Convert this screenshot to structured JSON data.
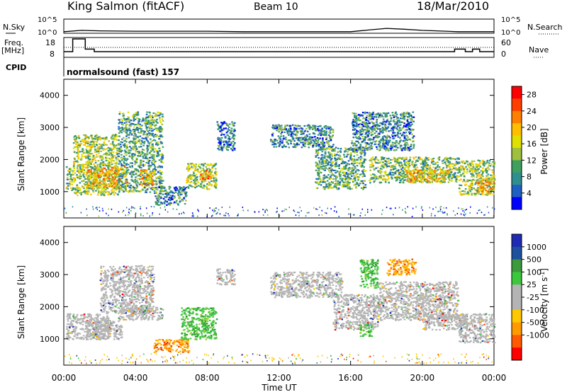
{
  "header": {
    "station": "King Salmon (fitACF)",
    "beam": "Beam 10",
    "date": "18/Mar/2010"
  },
  "left_labels": {
    "nsky": "N.Sky",
    "freq": "Freq.",
    "freq_unit": "[MHz]",
    "cpid": "CPID"
  },
  "right_labels": {
    "nsearch": "N.Search",
    "nave": "Nave"
  },
  "cpid_text": "normalsound (fast) 157",
  "x_axis": {
    "label": "Time UT",
    "ticks": [
      "00:00",
      "04:00",
      "08:00",
      "12:00",
      "16:00",
      "20:00",
      "00:00"
    ]
  },
  "colors": {
    "power_scale": [
      "#0000ff",
      "#1f5fbf",
      "#2f8f8f",
      "#3f9f5f",
      "#9fbf3f",
      "#dfdf00",
      "#ffbf00",
      "#ff7f00",
      "#ff3f00",
      "#ff0000"
    ],
    "velocity_scale": [
      "#ff0000",
      "#ff5a00",
      "#ff9a00",
      "#ffc800",
      "#b4b4b4",
      "#b4b4b4",
      "#3cc83c",
      "#3c9a3c",
      "#1e50a0",
      "#1e2ab4"
    ],
    "ground_scatter": "#b4b4b4"
  },
  "chart_data": [
    {
      "type": "line",
      "panel": "noise",
      "ylabel": "N.Sky",
      "right_label": "N.Search",
      "y_ticks": [
        "10^5",
        "10^0"
      ],
      "y_log": true,
      "xlim": [
        "00:00",
        "24:00"
      ],
      "series": [
        {
          "name": "N.Sky",
          "x": [
            0,
            1,
            2,
            4,
            6,
            8,
            10,
            12,
            14,
            16,
            17,
            18,
            19,
            20,
            22,
            24
          ],
          "values": [
            2,
            6,
            4,
            3,
            3,
            3,
            2,
            2,
            2,
            2,
            8,
            30,
            15,
            6,
            2,
            2
          ]
        }
      ]
    },
    {
      "type": "line",
      "panel": "frequency",
      "ylabel": "Freq. [MHz]",
      "y_ticks": [
        "18",
        "8"
      ],
      "ylim": [
        8,
        18
      ],
      "right_ticks": [
        "60",
        "0"
      ],
      "right_label": "Nave",
      "right_ylim": [
        0,
        60
      ],
      "xlim": [
        "00:00",
        "24:00"
      ],
      "series": [
        {
          "name": "Freq.",
          "x": [
            0,
            0.5,
            0.5,
            1.2,
            1.2,
            1.7,
            1.7,
            21.8,
            21.8,
            22.4,
            22.4,
            22.8,
            22.8,
            23.2,
            23.2,
            24
          ],
          "values": [
            10.5,
            10.5,
            18,
            18,
            12,
            12,
            10.5,
            10.5,
            12,
            12,
            10.5,
            10.5,
            12,
            12,
            10.5,
            10.5
          ]
        },
        {
          "name": "Nave",
          "x": [
            0,
            24
          ],
          "values": [
            30,
            30
          ]
        }
      ]
    },
    {
      "type": "heatmap",
      "panel": "power",
      "ylabel": "Slant Range [km]",
      "y_ticks": [
        1000,
        2000,
        3000,
        4000
      ],
      "ylim": [
        180,
        4500
      ],
      "xlim": [
        "00:00",
        "24:00"
      ],
      "colorbar": {
        "label": "Power [dB]",
        "ticks": [
          4,
          8,
          12,
          16,
          20,
          24,
          28
        ],
        "range": [
          0,
          30
        ]
      },
      "regions": [
        {
          "t0": 0.1,
          "t1": 0.5,
          "r0": 1050,
          "r1": 1800,
          "value": 12
        },
        {
          "t0": 0.5,
          "t1": 3.0,
          "r0": 900,
          "r1": 2800,
          "value": 14
        },
        {
          "t0": 1.2,
          "t1": 3.5,
          "r0": 1100,
          "r1": 1800,
          "value": 18
        },
        {
          "t0": 3.0,
          "t1": 5.5,
          "r0": 1000,
          "r1": 3500,
          "value": 10
        },
        {
          "t0": 4.2,
          "t1": 5.0,
          "r0": 1200,
          "r1": 1700,
          "value": 20
        },
        {
          "t0": 5.0,
          "t1": 6.8,
          "r0": 600,
          "r1": 1200,
          "value": 8
        },
        {
          "t0": 6.8,
          "t1": 8.5,
          "r0": 1100,
          "r1": 1900,
          "value": 14
        },
        {
          "t0": 7.5,
          "t1": 8.2,
          "r0": 1400,
          "r1": 1700,
          "value": 22
        },
        {
          "t0": 8.5,
          "t1": 9.5,
          "r0": 2300,
          "r1": 3200,
          "value": 6
        },
        {
          "t0": 11.5,
          "t1": 15.0,
          "r0": 2400,
          "r1": 3100,
          "value": 8
        },
        {
          "t0": 14.0,
          "t1": 16.8,
          "r0": 1100,
          "r1": 2400,
          "value": 10
        },
        {
          "t0": 16.0,
          "t1": 19.5,
          "r0": 2300,
          "r1": 3500,
          "value": 8
        },
        {
          "t0": 17.0,
          "t1": 22.0,
          "r0": 1300,
          "r1": 2100,
          "value": 12
        },
        {
          "t0": 19.0,
          "t1": 21.5,
          "r0": 1300,
          "r1": 1700,
          "value": 18
        },
        {
          "t0": 22.0,
          "t1": 24.0,
          "r0": 900,
          "r1": 2000,
          "value": 14
        },
        {
          "t0": 23.0,
          "t1": 24.0,
          "r0": 1000,
          "r1": 1400,
          "value": 20
        }
      ]
    },
    {
      "type": "heatmap",
      "panel": "velocity",
      "ylabel": "Slant Range [km]",
      "y_ticks": [
        1000,
        2000,
        3000,
        4000
      ],
      "ylim": [
        180,
        4500
      ],
      "xlim": [
        "00:00",
        "24:00"
      ],
      "colorbar": {
        "label": "Velocity [m s^-1]",
        "ticks": [
          "1000",
          "500",
          "100",
          "25",
          "-25",
          "-100",
          "-500",
          "-1000"
        ]
      },
      "regions": [
        {
          "t0": 0.1,
          "t1": 2.5,
          "r0": 1000,
          "r1": 1800,
          "class": "ground"
        },
        {
          "t0": 1.2,
          "t1": 3.2,
          "r0": 1000,
          "r1": 1600,
          "class": "ground"
        },
        {
          "t0": 2.0,
          "t1": 5.0,
          "r0": 1800,
          "r1": 3300,
          "class": "ground"
        },
        {
          "t0": 3.0,
          "t1": 5.5,
          "r0": 1600,
          "r1": 2000,
          "class": "ground"
        },
        {
          "t0": 5.0,
          "t1": 7.0,
          "r0": 600,
          "r1": 1000,
          "class": "negative"
        },
        {
          "t0": 6.5,
          "t1": 8.5,
          "r0": 1000,
          "r1": 2000,
          "class": "positive"
        },
        {
          "t0": 8.5,
          "t1": 9.5,
          "r0": 2700,
          "r1": 3200,
          "class": "ground"
        },
        {
          "t0": 11.5,
          "t1": 15.5,
          "r0": 2300,
          "r1": 3100,
          "class": "ground"
        },
        {
          "t0": 15.0,
          "t1": 17.5,
          "r0": 1300,
          "r1": 2400,
          "class": "ground"
        },
        {
          "t0": 16.5,
          "t1": 17.2,
          "r0": 1100,
          "r1": 1500,
          "class": "positive"
        },
        {
          "t0": 16.5,
          "t1": 17.5,
          "r0": 2600,
          "r1": 3500,
          "class": "positive"
        },
        {
          "t0": 18.0,
          "t1": 19.6,
          "r0": 3000,
          "r1": 3500,
          "class": "negative"
        },
        {
          "t0": 17.5,
          "t1": 22.0,
          "r0": 1600,
          "r1": 2800,
          "class": "ground"
        },
        {
          "t0": 20.0,
          "t1": 22.5,
          "r0": 1300,
          "r1": 1800,
          "class": "ground"
        },
        {
          "t0": 22.0,
          "t1": 24.0,
          "r0": 900,
          "r1": 1800,
          "class": "ground"
        }
      ]
    }
  ]
}
